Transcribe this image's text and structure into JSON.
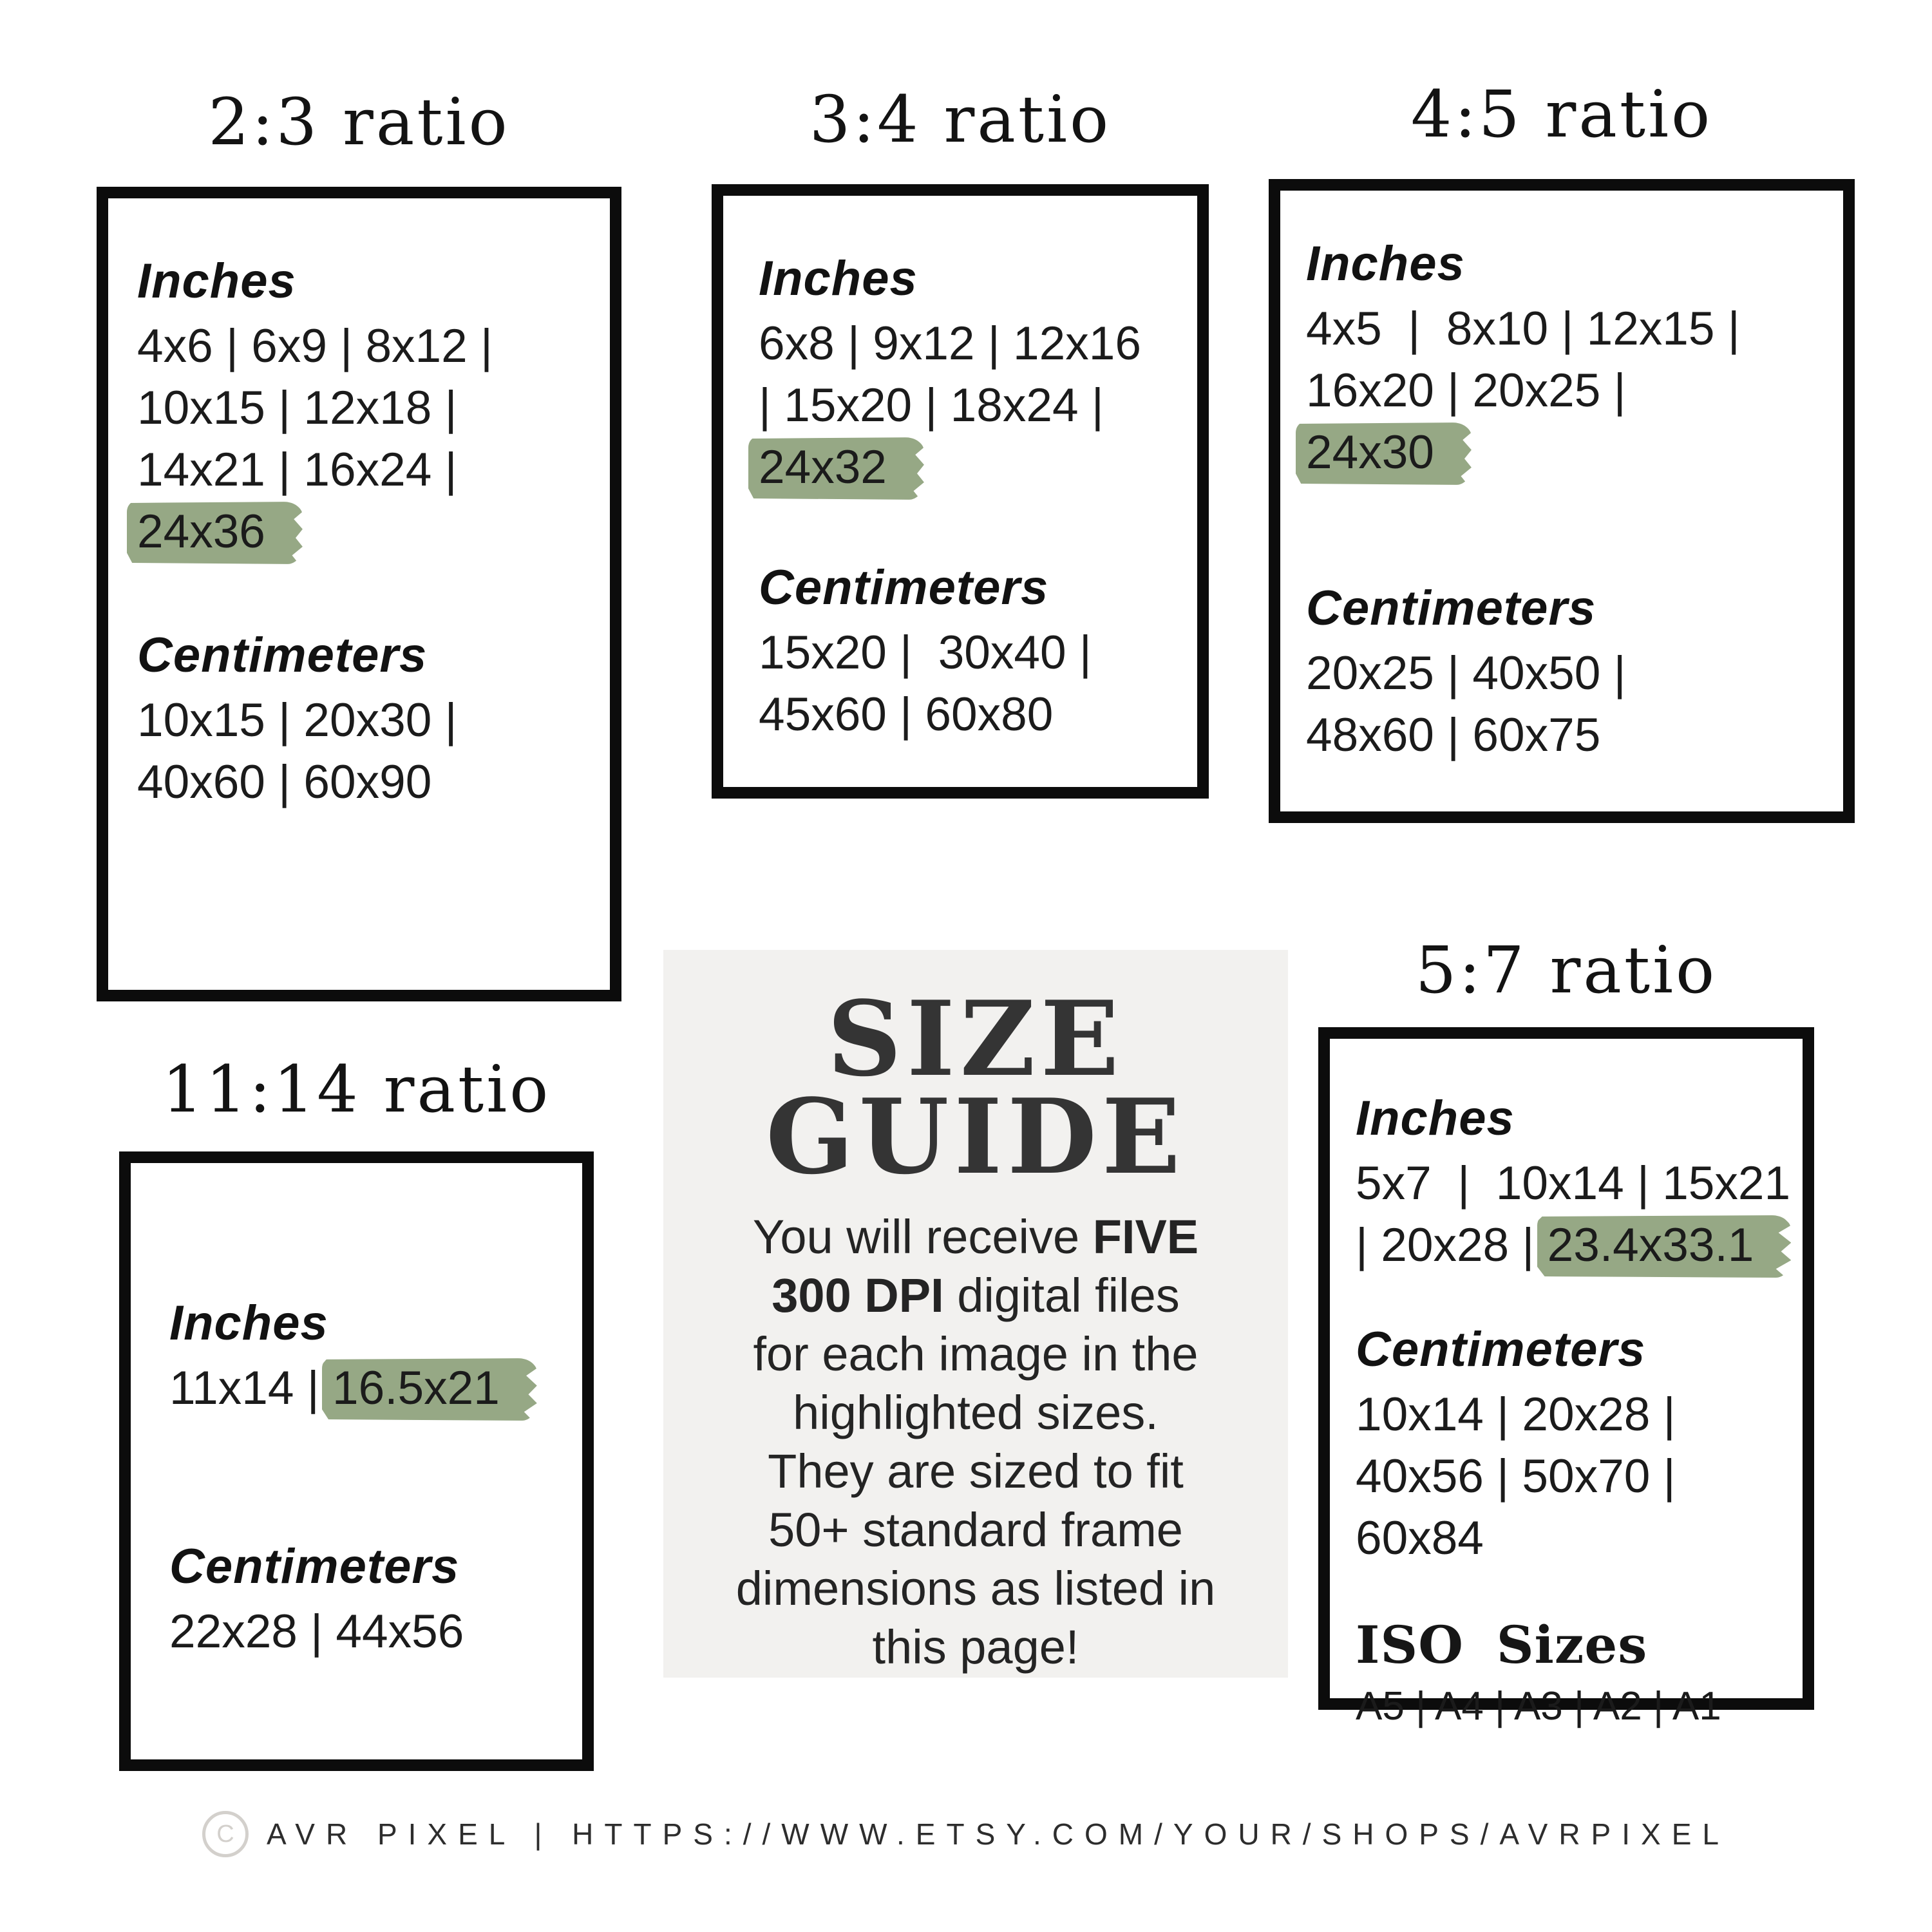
{
  "page": {
    "background": "#ffffff",
    "highlight_color": "#96A885",
    "panel_background": "#F2F1EF",
    "text_color": "#1a1a1a"
  },
  "boxes": [
    {
      "id": "r23",
      "title": "2:3 ratio",
      "sections": [
        {
          "heading": "Inches",
          "lines": [
            [
              {
                "t": "4x6 | 6x9 | 8x12 |"
              }
            ],
            [
              {
                "t": "10x15 | 12x18 |"
              }
            ],
            [
              {
                "t": "14x21 | 16x24 |"
              }
            ],
            [
              {
                "t": "24x36",
                "hl": true
              }
            ]
          ]
        },
        {
          "heading": "Centimeters",
          "lines": [
            [
              {
                "t": "10x15 | 20x30 |"
              }
            ],
            [
              {
                "t": "40x60 | 60x90"
              }
            ]
          ]
        }
      ]
    },
    {
      "id": "r34",
      "title": "3:4 ratio",
      "sections": [
        {
          "heading": "Inches",
          "lines": [
            [
              {
                "t": "6x8 | 9x12 | 12x16"
              }
            ],
            [
              {
                "t": "| 15x20 | 18x24 |"
              }
            ],
            [
              {
                "t": "24x32",
                "hl": true
              }
            ]
          ]
        },
        {
          "heading": "Centimeters",
          "lines": [
            [
              {
                "t": "15x20 |  30x40 |"
              }
            ],
            [
              {
                "t": "45x60 | 60x80"
              }
            ]
          ]
        }
      ]
    },
    {
      "id": "r45",
      "title": "4:5 ratio",
      "sections": [
        {
          "heading": "Inches",
          "lines": [
            [
              {
                "t": "4x5  |  8x10 | 12x15 |"
              }
            ],
            [
              {
                "t": "16x20 | 20x25 |"
              }
            ],
            [
              {
                "t": "24x30",
                "hl": true
              }
            ]
          ]
        },
        {
          "heading": "Centimeters",
          "lines": [
            [
              {
                "t": "20x25 | 40x50 |"
              }
            ],
            [
              {
                "t": "48x60 | 60x75"
              }
            ]
          ]
        }
      ]
    },
    {
      "id": "r1114",
      "title": "11:14 ratio",
      "sections": [
        {
          "heading": "Inches",
          "lines": [
            [
              {
                "t": "11x14 | "
              },
              {
                "t": "16.5x21",
                "hl": true
              }
            ]
          ]
        },
        {
          "heading": "Centimeters",
          "lines": [
            [
              {
                "t": "22x28 | 44x56"
              }
            ]
          ]
        }
      ]
    },
    {
      "id": "r57",
      "title": "5:7 ratio",
      "sections": [
        {
          "heading": "Inches",
          "lines": [
            [
              {
                "t": "5x7  |  10x14 | 15x21"
              }
            ],
            [
              {
                "t": "| 20x28 | "
              },
              {
                "t": "23.4x33.1",
                "hl": true
              }
            ]
          ]
        },
        {
          "heading": "Centimeters",
          "lines": [
            [
              {
                "t": "10x14 | 20x28 |"
              }
            ],
            [
              {
                "t": "40x56 | 50x70 |"
              }
            ],
            [
              {
                "t": "60x84"
              }
            ]
          ]
        },
        {
          "heading": "ISO Sizes",
          "serif": true,
          "lines": [
            [
              {
                "t": "A5 | A4 | A3 | A2 | A1"
              }
            ]
          ]
        }
      ]
    }
  ],
  "center": {
    "title_line1": "SIZE",
    "title_line2": "GUIDE",
    "body_lines": [
      [
        {
          "t": "You will receive "
        },
        {
          "t": "FIVE",
          "b": true
        }
      ],
      [
        {
          "t": "300 DPI",
          "b": true
        },
        {
          "t": " digital files"
        }
      ],
      [
        {
          "t": "for each image in the"
        }
      ],
      [
        {
          "t": "highlighted sizes."
        }
      ],
      [
        {
          "t": "They are sized to fit"
        }
      ],
      [
        {
          "t": "50+ standard frame"
        }
      ],
      [
        {
          "t": "dimensions as listed in"
        }
      ],
      [
        {
          "t": "this page!"
        }
      ]
    ]
  },
  "footer": {
    "copyright_symbol": "C",
    "text": "AVR PIXEL | HTTPS://WWW.ETSY.COM/YOUR/SHOPS/AVRPIXEL"
  }
}
